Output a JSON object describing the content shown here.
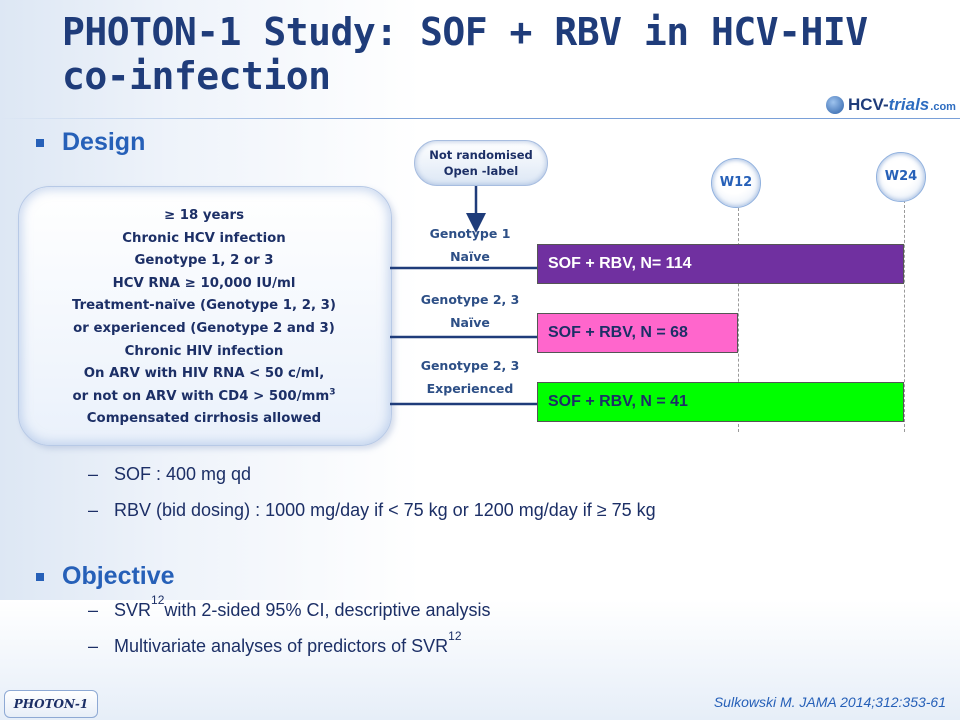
{
  "title": {
    "line1": "PHOTON-1 Study: SOF + RBV in HCV-HIV",
    "line2": "co-infection"
  },
  "logo": {
    "part1": "HCV-",
    "part2": "trials",
    "part3": ".com"
  },
  "design": {
    "heading": "Design",
    "criteria": [
      "≥ 18 years",
      "Chronic HCV infection",
      "Genotype 1,  2 or 3",
      "HCV RNA ≥ 10,000 IU/ml",
      "Treatment-naïve (Genotype 1, 2, 3)",
      "or experienced (Genotype 2 and 3)",
      "Chronic HIV infection",
      "On ARV with HIV RNA < 50 c/ml,",
      "or not on ARV with CD4 > 500/mm",
      "Compensated cirrhosis allowed"
    ],
    "criteria_sup": "3",
    "randomisation": {
      "line1": "Not randomised",
      "line2": "Open -label"
    },
    "weeks": [
      "W12",
      "W24"
    ],
    "arms": [
      {
        "label1": "Genotype 1",
        "label2": "Naïve",
        "bar": "SOF + RBV,  N= 114",
        "color": "#7030a0",
        "text_color": "#ffffff",
        "duration_weeks": 24
      },
      {
        "label1": "Genotype 2, 3",
        "label2": "Naïve",
        "bar": "SOF + RBV, N = 68",
        "color": "#ff66cc",
        "text_color": "#1c2f66",
        "duration_weeks": 12
      },
      {
        "label1": "Genotype 2, 3",
        "label2": "Experienced",
        "bar": "SOF + RBV, N = 41",
        "color": "#00ff00",
        "text_color": "#1c2f66",
        "duration_weeks": 24
      }
    ],
    "dosing": [
      {
        "dash": "–",
        "text": "SOF : 400 mg qd"
      },
      {
        "dash": "–",
        "text": "RBV (bid dosing) : 1000 mg/day if < 75 kg or 1200 mg/day if ≥ 75 kg"
      }
    ]
  },
  "objective": {
    "heading": "Objective",
    "items": [
      {
        "dash": "–",
        "pre": "SVR",
        "sub": "12",
        "post": " with 2-sided 95% CI, descriptive analysis"
      },
      {
        "dash": "–",
        "pre": "Multivariate analyses of predictors of SVR",
        "sub": "12",
        "post": ""
      }
    ]
  },
  "footer": {
    "tag": "PHOTON-1",
    "citation": "Sulkowski M. JAMA 2014;312:353-61"
  }
}
